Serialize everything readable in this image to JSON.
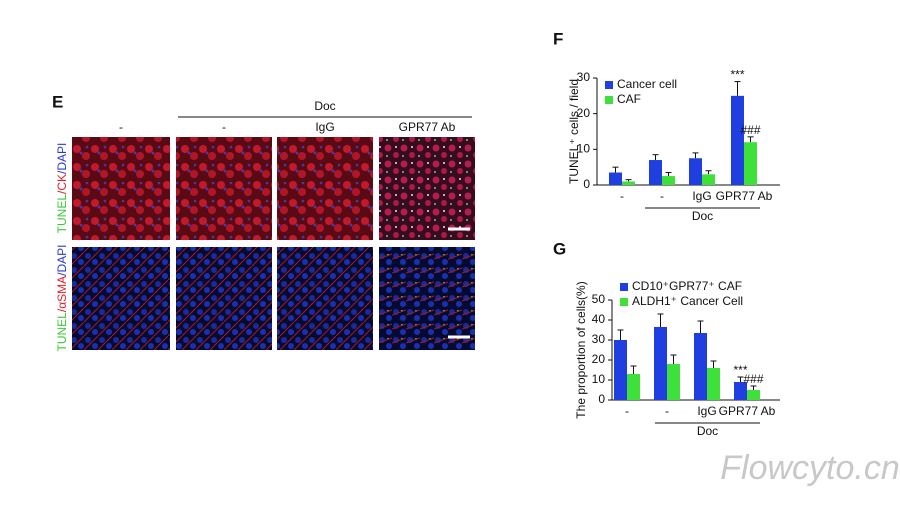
{
  "panel_e": {
    "label": "E",
    "group_label": "Doc",
    "columns": [
      "-",
      "-",
      "IgG",
      "GPR77 Ab"
    ],
    "rows": [
      {
        "parts": [
          "TUNEL",
          "/CK",
          "/DAPI"
        ]
      },
      {
        "parts": [
          "TUNEL",
          "/αSMA",
          "/DAPI"
        ]
      }
    ]
  },
  "watermark": "Flowcyto.cn",
  "chart_data": [
    {
      "type": "bar",
      "label": "F",
      "y_label": "TUNEL⁺ cells / field",
      "categories": [
        "-",
        "-",
        "IgG",
        "GPR77 Ab"
      ],
      "group_label": "Doc",
      "ylim": [
        0,
        30
      ],
      "yticks": [
        0,
        10,
        20,
        30
      ],
      "grid": false,
      "legend": "top-left",
      "series": [
        {
          "name": "Cancer cell",
          "color": "#1f3fe0",
          "values": [
            3.5,
            7,
            7.5,
            25
          ],
          "errors": [
            1.5,
            1.5,
            1.5,
            4
          ],
          "value_annotations": [
            null,
            null,
            null,
            "***"
          ]
        },
        {
          "name": "CAF",
          "color": "#3ee03a",
          "values": [
            1,
            2.5,
            3,
            12
          ],
          "errors": [
            0.5,
            1,
            1,
            1.5
          ],
          "value_annotations": [
            null,
            null,
            null,
            "###"
          ]
        }
      ]
    },
    {
      "type": "bar",
      "label": "G",
      "y_label": "The proportion of cells(%)",
      "categories": [
        "-",
        "-",
        "IgG",
        "GPR77 Ab"
      ],
      "group_label": "Doc",
      "ylim": [
        0,
        50
      ],
      "yticks": [
        0,
        10,
        20,
        30,
        40,
        50
      ],
      "grid": false,
      "legend": "top-left",
      "series": [
        {
          "name": "CD10⁺GPR77⁺ CAF",
          "color": "#1f3fe0",
          "values": [
            30,
            36.5,
            33.5,
            9
          ],
          "errors": [
            5,
            6.5,
            6,
            2.5
          ],
          "value_annotations": [
            null,
            null,
            null,
            "***"
          ]
        },
        {
          "name": "ALDH1⁺ Cancer Cell",
          "color": "#3ee03a",
          "values": [
            13,
            18,
            16,
            5
          ],
          "errors": [
            4,
            4.5,
            3.5,
            2
          ],
          "value_annotations": [
            null,
            null,
            null,
            "###"
          ]
        }
      ]
    }
  ]
}
